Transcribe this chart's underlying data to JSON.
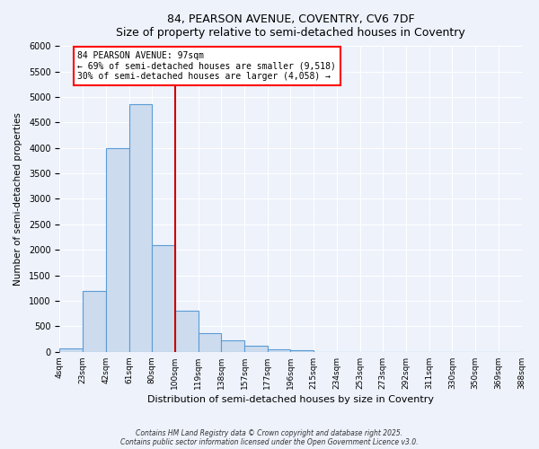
{
  "title": "84, PEARSON AVENUE, COVENTRY, CV6 7DF",
  "subtitle": "Size of property relative to semi-detached houses in Coventry",
  "xlabel": "Distribution of semi-detached houses by size in Coventry",
  "ylabel": "Number of semi-detached properties",
  "bin_labels": [
    "4sqm",
    "23sqm",
    "42sqm",
    "61sqm",
    "80sqm",
    "100sqm",
    "119sqm",
    "138sqm",
    "157sqm",
    "177sqm",
    "196sqm",
    "215sqm",
    "234sqm",
    "253sqm",
    "273sqm",
    "292sqm",
    "311sqm",
    "330sqm",
    "350sqm",
    "369sqm",
    "388sqm"
  ],
  "bar_values": [
    75,
    1200,
    4000,
    4850,
    2100,
    800,
    375,
    230,
    120,
    55,
    30,
    5,
    0,
    0,
    0,
    0,
    0,
    0,
    0,
    0
  ],
  "bar_color": "#ccdcee",
  "bar_edge_color": "#5b9bd5",
  "ylim": [
    0,
    6000
  ],
  "yticks": [
    0,
    500,
    1000,
    1500,
    2000,
    2500,
    3000,
    3500,
    4000,
    4500,
    5000,
    5500,
    6000
  ],
  "vline_color": "#cc0000",
  "annotation_title": "84 PEARSON AVENUE: 97sqm",
  "annotation_line1": "← 69% of semi-detached houses are smaller (9,518)",
  "annotation_line2": "30% of semi-detached houses are larger (4,058) →",
  "footer1": "Contains HM Land Registry data © Crown copyright and database right 2025.",
  "footer2": "Contains public sector information licensed under the Open Government Licence v3.0.",
  "bg_color": "#edf2fb",
  "grid_color": "#ffffff"
}
